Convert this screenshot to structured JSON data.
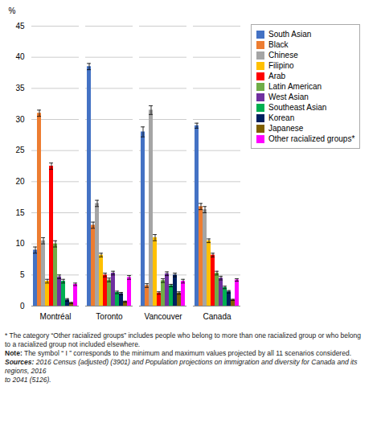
{
  "chart_data": {
    "type": "bar",
    "ylabel": "%",
    "categories": [
      "Montréal",
      "Toronto",
      "Vancouver",
      "Canada"
    ],
    "series": [
      {
        "name": "South Asian",
        "color": "#4472C4",
        "values": [
          9.0,
          38.5,
          28.0,
          29.0
        ],
        "errors": [
          0.5,
          0.5,
          0.8,
          0.4
        ]
      },
      {
        "name": "Black",
        "color": "#ED7D31",
        "values": [
          31.0,
          13.0,
          3.3,
          16.0
        ],
        "errors": [
          0.5,
          0.5,
          0.3,
          0.5
        ]
      },
      {
        "name": "Chinese",
        "color": "#A5A5A5",
        "values": [
          10.5,
          16.5,
          31.5,
          15.5
        ],
        "errors": [
          0.5,
          0.5,
          0.7,
          0.5
        ]
      },
      {
        "name": "Filipino",
        "color": "#FFC000",
        "values": [
          4.0,
          8.2,
          11.0,
          10.5
        ],
        "errors": [
          0.3,
          0.3,
          0.5,
          0.3
        ]
      },
      {
        "name": "Arab",
        "color": "#FF0000",
        "values": [
          22.5,
          5.0,
          2.1,
          8.2
        ],
        "errors": [
          0.5,
          0.3,
          0.2,
          0.3
        ]
      },
      {
        "name": "Latin American",
        "color": "#70AD47",
        "values": [
          10.0,
          4.2,
          4.1,
          5.3
        ],
        "errors": [
          0.5,
          0.3,
          0.3,
          0.3
        ]
      },
      {
        "name": "West Asian",
        "color": "#7030A0",
        "values": [
          4.7,
          5.3,
          5.2,
          4.5
        ],
        "errors": [
          0.3,
          0.3,
          0.3,
          0.3
        ]
      },
      {
        "name": "Southeast Asian",
        "color": "#00B050",
        "values": [
          4.0,
          2.2,
          3.3,
          3.0
        ],
        "errors": [
          0.3,
          0.2,
          0.2,
          0.2
        ]
      },
      {
        "name": "Korean",
        "color": "#002060",
        "values": [
          1.0,
          2.0,
          5.0,
          2.3
        ],
        "errors": [
          0.2,
          0.2,
          0.3,
          0.2
        ]
      },
      {
        "name": "Japanese",
        "color": "#806000",
        "values": [
          0.5,
          0.7,
          2.1,
          1.0
        ],
        "errors": [
          0.1,
          0.1,
          0.2,
          0.1
        ]
      },
      {
        "name": "Other racialized groups*",
        "color": "#FF00FF",
        "values": [
          3.5,
          4.6,
          4.0,
          4.2
        ],
        "errors": [
          0.2,
          0.3,
          0.3,
          0.2
        ]
      }
    ],
    "ylim": [
      0,
      45
    ],
    "yticks": [
      0,
      5,
      10,
      15,
      20,
      25,
      30,
      35,
      40,
      45
    ],
    "grid": true,
    "legend": "right",
    "annotations": [
      [
        "* The category “Other racialized groups” includes people who belong to more than one racialized group or who belong"
      ],
      [
        "to a racialized group not included elsewhere."
      ],
      [
        "Note:",
        " The symbol “ I ” corresponds to the minimum and maximum values projected by all 11 scenarios considered."
      ],
      [
        "Sources:",
        " 2016 Census (adjusted) (3901) and Population projections on immigration and diversity for Canada and its regions, 2016"
      ],
      [
        "to 2041 (5126)."
      ]
    ]
  }
}
